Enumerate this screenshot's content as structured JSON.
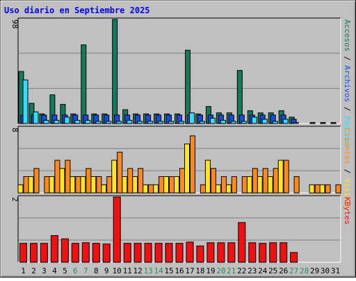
{
  "title": "Uso diario en Septiembre 2025",
  "colors": {
    "frame_bg": "#c0c0c0",
    "plot_bg": "#c0c0c0",
    "grid": "#808080",
    "title": "#0000ff",
    "weekday_label": "#000000",
    "weekend_label": "#2a8a5a",
    "accesos": "#137a5a",
    "archivos": "#1a4be0",
    "paginas": "#33ddff",
    "visitas": "#ffe522",
    "clientes": "#ff8a1a",
    "kbytes": "#ee1111"
  },
  "chart_data": [
    {
      "type": "bar",
      "panel": "top",
      "ymax_label": "98",
      "ylim": [
        0,
        98
      ],
      "legend_text": [
        {
          "text": "Accesos",
          "color": "#137a5a"
        },
        {
          "text": " / ",
          "color": "#000000"
        },
        {
          "text": "Archivos",
          "color": "#1a4be0"
        },
        {
          "text": " / ",
          "color": "#000000"
        },
        {
          "text": "Páginas",
          "color": "#33ddff"
        }
      ],
      "categories": [
        "1",
        "2",
        "3",
        "4",
        "5",
        "6",
        "7",
        "8",
        "9",
        "10",
        "11",
        "12",
        "13",
        "14",
        "15",
        "16",
        "17",
        "18",
        "19",
        "20",
        "21",
        "22",
        "23",
        "24",
        "25",
        "26",
        "27",
        "28",
        "29",
        "30",
        "31"
      ],
      "series": [
        {
          "name": "Accesos",
          "values": [
            49,
            19,
            9,
            27,
            18,
            9,
            74,
            9,
            9,
            98,
            13,
            9,
            9,
            9,
            9,
            9,
            69,
            9,
            16,
            10,
            10,
            50,
            12,
            10,
            10,
            12,
            6,
            0,
            1,
            1,
            1
          ]
        },
        {
          "name": "Archivos",
          "values": [
            8,
            8,
            8,
            8,
            8,
            8,
            8,
            8,
            8,
            8,
            8,
            8,
            8,
            8,
            8,
            8,
            8,
            8,
            8,
            8,
            8,
            8,
            8,
            8,
            8,
            8,
            4,
            0,
            0,
            0,
            0
          ]
        },
        {
          "name": "Páginas",
          "values": [
            41,
            11,
            3,
            3,
            6,
            3,
            3,
            2,
            2,
            2,
            3,
            2,
            2,
            2,
            2,
            2,
            10,
            2,
            5,
            3,
            2,
            2,
            6,
            4,
            2,
            4,
            1,
            0,
            0,
            0,
            0
          ]
        }
      ]
    },
    {
      "type": "bar",
      "panel": "middle",
      "ymax_label": "8",
      "ylim": [
        0,
        8
      ],
      "legend_text": [
        {
          "text": "Clientes",
          "color": "#ff8a1a"
        },
        {
          "text": " / ",
          "color": "#000000"
        },
        {
          "text": "Visitas",
          "color": "#ffe522"
        }
      ],
      "categories": [
        "1",
        "2",
        "3",
        "4",
        "5",
        "6",
        "7",
        "8",
        "9",
        "10",
        "11",
        "12",
        "13",
        "14",
        "15",
        "16",
        "17",
        "18",
        "19",
        "20",
        "21",
        "22",
        "23",
        "24",
        "25",
        "26",
        "27",
        "28",
        "29",
        "30",
        "31"
      ],
      "series": [
        {
          "name": "Visitas",
          "values": [
            1,
            2,
            0,
            2,
            3,
            2,
            2,
            2,
            1,
            4,
            2,
            2,
            1,
            1,
            2,
            2,
            6,
            0,
            4,
            1,
            1,
            0,
            2,
            2,
            2,
            4,
            0,
            0,
            1,
            1,
            0
          ]
        },
        {
          "name": "Clientes",
          "values": [
            2,
            3,
            2,
            4,
            4,
            2,
            3,
            2,
            2,
            5,
            3,
            3,
            1,
            2,
            2,
            3,
            7,
            1,
            3,
            2,
            2,
            2,
            3,
            3,
            3,
            4,
            2,
            0,
            1,
            1,
            1
          ]
        }
      ]
    },
    {
      "type": "bar",
      "panel": "bottom",
      "ymax_label": "2",
      "ylim": [
        0,
        100
      ],
      "legend_text": [
        {
          "text": "KBytes",
          "color": "#ee1111"
        }
      ],
      "categories": [
        "1",
        "2",
        "3",
        "4",
        "5",
        "6",
        "7",
        "8",
        "9",
        "10",
        "11",
        "12",
        "13",
        "14",
        "15",
        "16",
        "17",
        "18",
        "19",
        "20",
        "21",
        "22",
        "23",
        "24",
        "25",
        "26",
        "27",
        "28",
        "29",
        "30",
        "31"
      ],
      "series": [
        {
          "name": "KBytes",
          "values": [
            29,
            29,
            29,
            41,
            36,
            29,
            30,
            29,
            28,
            100,
            29,
            29,
            29,
            29,
            29,
            29,
            31,
            25,
            30,
            30,
            30,
            61,
            30,
            29,
            30,
            30,
            15,
            0,
            0,
            0,
            0
          ]
        }
      ]
    }
  ],
  "day_labels": [
    {
      "text": "1",
      "weekend": false
    },
    {
      "text": "2",
      "weekend": false
    },
    {
      "text": "3",
      "weekend": false
    },
    {
      "text": "4",
      "weekend": false
    },
    {
      "text": "5",
      "weekend": false
    },
    {
      "text": "6",
      "weekend": true
    },
    {
      "text": "7",
      "weekend": true
    },
    {
      "text": "8",
      "weekend": false
    },
    {
      "text": "9",
      "weekend": false
    },
    {
      "text": "10",
      "weekend": false
    },
    {
      "text": "11",
      "weekend": false
    },
    {
      "text": "12",
      "weekend": false
    },
    {
      "text": "13",
      "weekend": true
    },
    {
      "text": "14",
      "weekend": true
    },
    {
      "text": "15",
      "weekend": false
    },
    {
      "text": "16",
      "weekend": false
    },
    {
      "text": "17",
      "weekend": false
    },
    {
      "text": "18",
      "weekend": false
    },
    {
      "text": "19",
      "weekend": false
    },
    {
      "text": "20",
      "weekend": true
    },
    {
      "text": "21",
      "weekend": true
    },
    {
      "text": "22",
      "weekend": false
    },
    {
      "text": "23",
      "weekend": false
    },
    {
      "text": "24",
      "weekend": false
    },
    {
      "text": "25",
      "weekend": false
    },
    {
      "text": "26",
      "weekend": false
    },
    {
      "text": "27",
      "weekend": true
    },
    {
      "text": "28",
      "weekend": true
    },
    {
      "text": "29",
      "weekend": false
    },
    {
      "text": "30",
      "weekend": false
    },
    {
      "text": "31",
      "weekend": false
    }
  ]
}
